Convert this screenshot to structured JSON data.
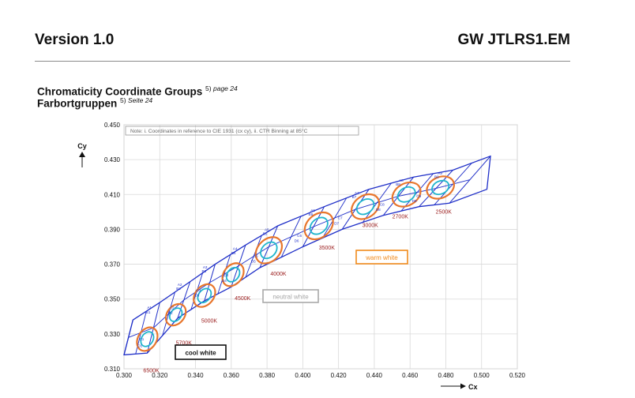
{
  "header": {
    "version": "Version 1.0",
    "doc_id": "GW JTLRS1.EM"
  },
  "titles": {
    "line1": "Chromaticity Coordinate Groups",
    "line1_note_num": "5)",
    "line1_note_text": "page 24",
    "line2": "Farbortgruppen",
    "line2_note_num": "5)",
    "line2_note_text": "Seite 24"
  },
  "chart_data": {
    "type": "scatter",
    "note": "Note: i. Coordinates in reference to CIE 1931 (cx cy), ii. CTR Binning at 85°C",
    "xlabel": "Cx",
    "ylabel": "Cy",
    "xlim": [
      0.3,
      0.52
    ],
    "ylim": [
      0.31,
      0.45
    ],
    "x_ticks": [
      "0.300",
      "0.320",
      "0.340",
      "0.360",
      "0.380",
      "0.400",
      "0.420",
      "0.440",
      "0.460",
      "0.480",
      "0.500",
      "0.520"
    ],
    "y_ticks": [
      "0.310",
      "0.330",
      "0.350",
      "0.370",
      "0.390",
      "0.410",
      "0.430",
      "0.450"
    ],
    "grid": true,
    "colors": {
      "bin_outline": "#1f2fc8",
      "ellipse_outer": "#e8762c",
      "ellipse_inner": "#1fb5cc",
      "cct_label": "#9a1c1c",
      "warm_white": "#f08a1c",
      "neutral_white": "#a8a8a8",
      "cool_white": "#111111"
    },
    "cct_groups": [
      {
        "cct": "6500K",
        "center": [
          0.313,
          0.327
        ]
      },
      {
        "cct": "5700K",
        "center": [
          0.329,
          0.341
        ]
      },
      {
        "cct": "5000K",
        "center": [
          0.345,
          0.352
        ]
      },
      {
        "cct": "4500K",
        "center": [
          0.361,
          0.364
        ]
      },
      {
        "cct": "4000K",
        "center": [
          0.381,
          0.378
        ]
      },
      {
        "cct": "3500K",
        "center": [
          0.409,
          0.392
        ]
      },
      {
        "cct": "3000K",
        "center": [
          0.435,
          0.403
        ]
      },
      {
        "cct": "2700K",
        "center": [
          0.458,
          0.41
        ]
      },
      {
        "cct": "2500K",
        "center": [
          0.477,
          0.414
        ]
      }
    ],
    "annotations": {
      "warm_white": "warm white",
      "neutral_white": "neutral white",
      "cool_white": "cool white"
    },
    "bin_labels": [
      "A1",
      "B1",
      "C1",
      "D1",
      "A2",
      "B2",
      "C2",
      "D2",
      "A3",
      "B3",
      "C3",
      "D3",
      "A4",
      "B4",
      "C4",
      "D4",
      "A5",
      "B5",
      "C5",
      "D5",
      "A6",
      "B6",
      "C6",
      "D6",
      "A7",
      "B7",
      "C7",
      "D7",
      "A8",
      "B8",
      "C8",
      "D8",
      "A9",
      "B9",
      "C9",
      "D9"
    ]
  }
}
